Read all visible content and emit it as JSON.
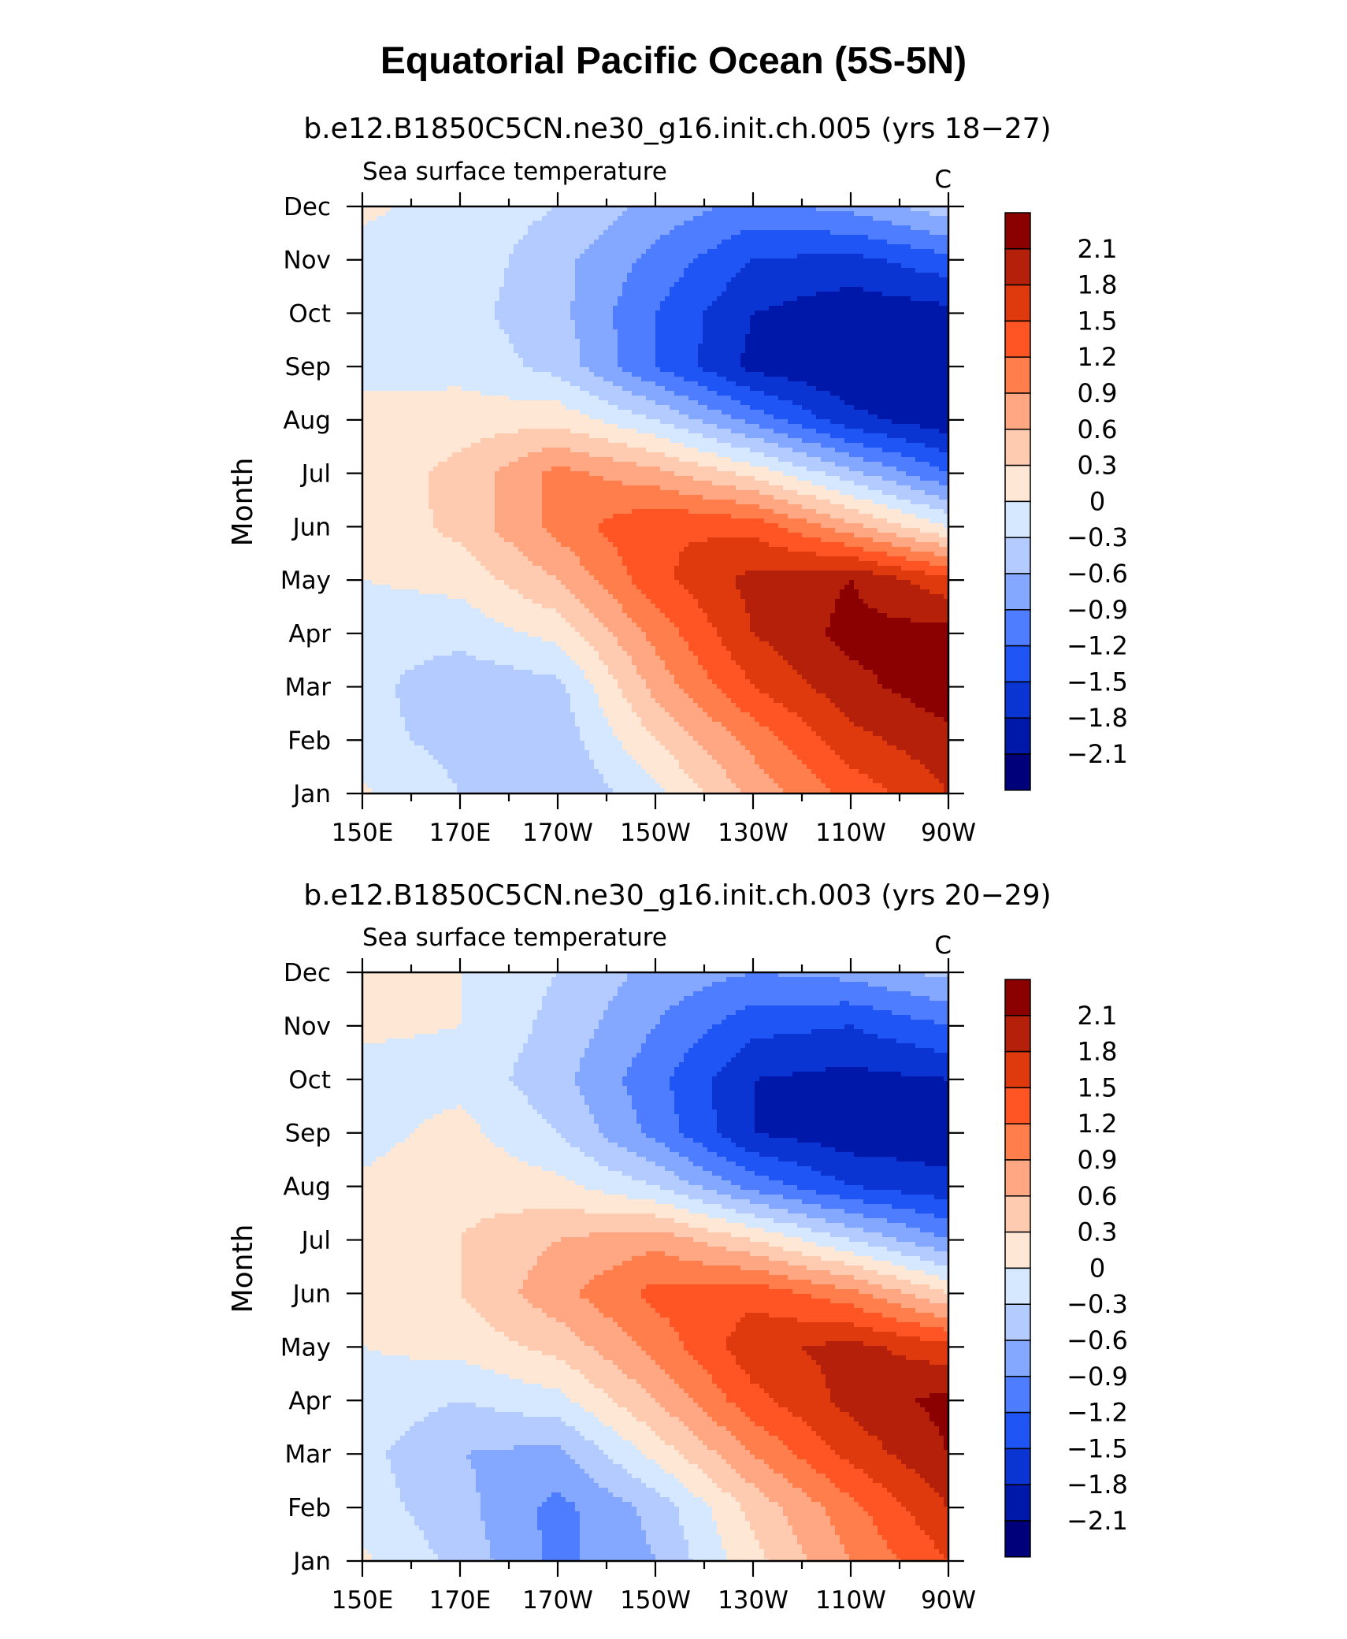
{
  "title": "Equatorial Pacific Ocean (5S-5N)",
  "colorbar": {
    "levels": [
      "2.1",
      "1.8",
      "1.5",
      "1.2",
      "0.9",
      "0.6",
      "0.3",
      "0",
      "−0.3",
      "−0.6",
      "−0.9",
      "−1.2",
      "−1.5",
      "−1.8",
      "−2.1"
    ],
    "colors": [
      "#8b0000",
      "#b5200b",
      "#de3a0e",
      "#ff5524",
      "#ff7e4c",
      "#ffa682",
      "#ffcbb0",
      "#ffe7d6",
      "#d6e8ff",
      "#b3cbff",
      "#84a8ff",
      "#4f7dff",
      "#2055f5",
      "#0a35d2",
      "#0018aa",
      "#00007a"
    ]
  },
  "chart_data": [
    {
      "type": "heatmap",
      "title": "b.e12.B1850C5CN.ne30_g16.init.ch.005 (yrs 18−27)",
      "left_string": "Sea surface temperature",
      "units": "C",
      "ylabel": "Month",
      "x_ticks": [
        "150E",
        "170E",
        "170W",
        "150W",
        "130W",
        "110W",
        "90W"
      ],
      "x_lon_range": [
        150,
        270
      ],
      "y_ticks": [
        "Jan",
        "Feb",
        "Mar",
        "Apr",
        "May",
        "Jun",
        "Jul",
        "Aug",
        "Sep",
        "Oct",
        "Nov",
        "Dec"
      ],
      "contour_interval": 0.3,
      "x": [
        150,
        170,
        190,
        210,
        230,
        250,
        270
      ],
      "y": [
        "Jan",
        "Feb",
        "Mar",
        "Apr",
        "May",
        "Jun",
        "Jul",
        "Aug",
        "Sep",
        "Oct",
        "Nov",
        "Dec"
      ],
      "z": [
        [
          0.05,
          -0.3,
          -0.6,
          -0.1,
          0.7,
          1.3,
          1.8
        ],
        [
          -0.2,
          -0.4,
          -0.5,
          0.3,
          1.0,
          1.7,
          2.0
        ],
        [
          -0.2,
          -0.5,
          -0.4,
          0.7,
          1.5,
          2.0,
          2.3
        ],
        [
          -0.2,
          -0.2,
          0.1,
          1.0,
          1.8,
          2.2,
          2.2
        ],
        [
          0.0,
          0.1,
          0.6,
          1.4,
          1.9,
          2.1,
          1.6
        ],
        [
          0.05,
          0.4,
          1.0,
          1.5,
          1.4,
          0.7,
          0.0
        ],
        [
          0.1,
          0.4,
          1.0,
          0.7,
          0.2,
          -0.5,
          -1.2
        ],
        [
          0.1,
          0.15,
          0.2,
          -0.3,
          -1.0,
          -1.7,
          -2.0
        ],
        [
          -0.1,
          -0.1,
          -0.4,
          -1.2,
          -1.9,
          -2.1,
          -2.1
        ],
        [
          -0.2,
          -0.2,
          -0.5,
          -1.2,
          -1.8,
          -2.0,
          -1.9
        ],
        [
          -0.1,
          -0.1,
          -0.5,
          -1.0,
          -1.5,
          -1.6,
          -1.3
        ],
        [
          0.05,
          -0.1,
          -0.3,
          -0.7,
          -1.0,
          -0.8,
          -0.4
        ]
      ]
    },
    {
      "type": "heatmap",
      "title": "b.e12.B1850C5CN.ne30_g16.init.ch.003 (yrs 20−29)",
      "left_string": "Sea surface temperature",
      "units": "C",
      "ylabel": "Month",
      "x_ticks": [
        "150E",
        "170E",
        "170W",
        "150W",
        "130W",
        "110W",
        "90W"
      ],
      "x_lon_range": [
        150,
        270
      ],
      "y_ticks": [
        "Jan",
        "Feb",
        "Mar",
        "Apr",
        "May",
        "Jun",
        "Jul",
        "Aug",
        "Sep",
        "Oct",
        "Nov",
        "Dec"
      ],
      "contour_interval": 0.3,
      "x": [
        150,
        170,
        190,
        210,
        230,
        250,
        270
      ],
      "y": [
        "Jan",
        "Feb",
        "Mar",
        "Apr",
        "May",
        "Jun",
        "Jul",
        "Aug",
        "Sep",
        "Oct",
        "Nov",
        "Dec"
      ],
      "z": [
        [
          0.05,
          -0.4,
          -1.0,
          -0.6,
          0.2,
          0.9,
          1.5
        ],
        [
          -0.15,
          -0.5,
          -1.0,
          -0.5,
          0.4,
          1.1,
          1.8
        ],
        [
          -0.2,
          -0.6,
          -0.7,
          0.1,
          0.9,
          1.6,
          2.1
        ],
        [
          -0.1,
          -0.3,
          -0.1,
          0.6,
          1.4,
          1.9,
          2.2
        ],
        [
          0.0,
          0.1,
          0.4,
          1.0,
          1.7,
          1.9,
          1.6
        ],
        [
          0.1,
          0.3,
          0.8,
          1.3,
          1.4,
          1.0,
          0.3
        ],
        [
          0.1,
          0.3,
          0.6,
          0.8,
          0.3,
          -0.3,
          -0.9
        ],
        [
          0.05,
          0.2,
          0.1,
          -0.3,
          -1.0,
          -1.5,
          -1.7
        ],
        [
          -0.1,
          0.1,
          -0.3,
          -1.0,
          -1.8,
          -2.0,
          -2.0
        ],
        [
          -0.1,
          -0.1,
          -0.5,
          -1.1,
          -1.8,
          -1.9,
          -1.8
        ],
        [
          0.05,
          0.0,
          -0.4,
          -0.9,
          -1.4,
          -1.5,
          -1.2
        ],
        [
          0.05,
          0.0,
          -0.3,
          -0.7,
          -0.9,
          -0.8,
          -0.5
        ]
      ]
    }
  ]
}
